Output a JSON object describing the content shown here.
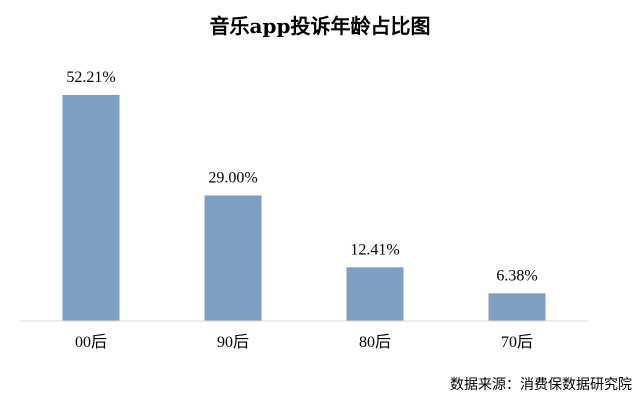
{
  "chart_data": {
    "type": "bar",
    "title": "音乐app投诉年龄占比图",
    "categories": [
      "00后",
      "90后",
      "80后",
      "70后"
    ],
    "values": [
      52.21,
      29.0,
      12.41,
      6.38
    ],
    "value_labels": [
      "52.21%",
      "29.00%",
      "12.41%",
      "6.38%"
    ],
    "unit": "%",
    "ylim": [
      0,
      52.21
    ],
    "grid": false,
    "legend": "none",
    "xlabel": "",
    "ylabel": "",
    "bar_color": "#7f9fc2",
    "axis_color": "#d9d9d9"
  },
  "source_note": "数据来源：消费保数据研究院"
}
